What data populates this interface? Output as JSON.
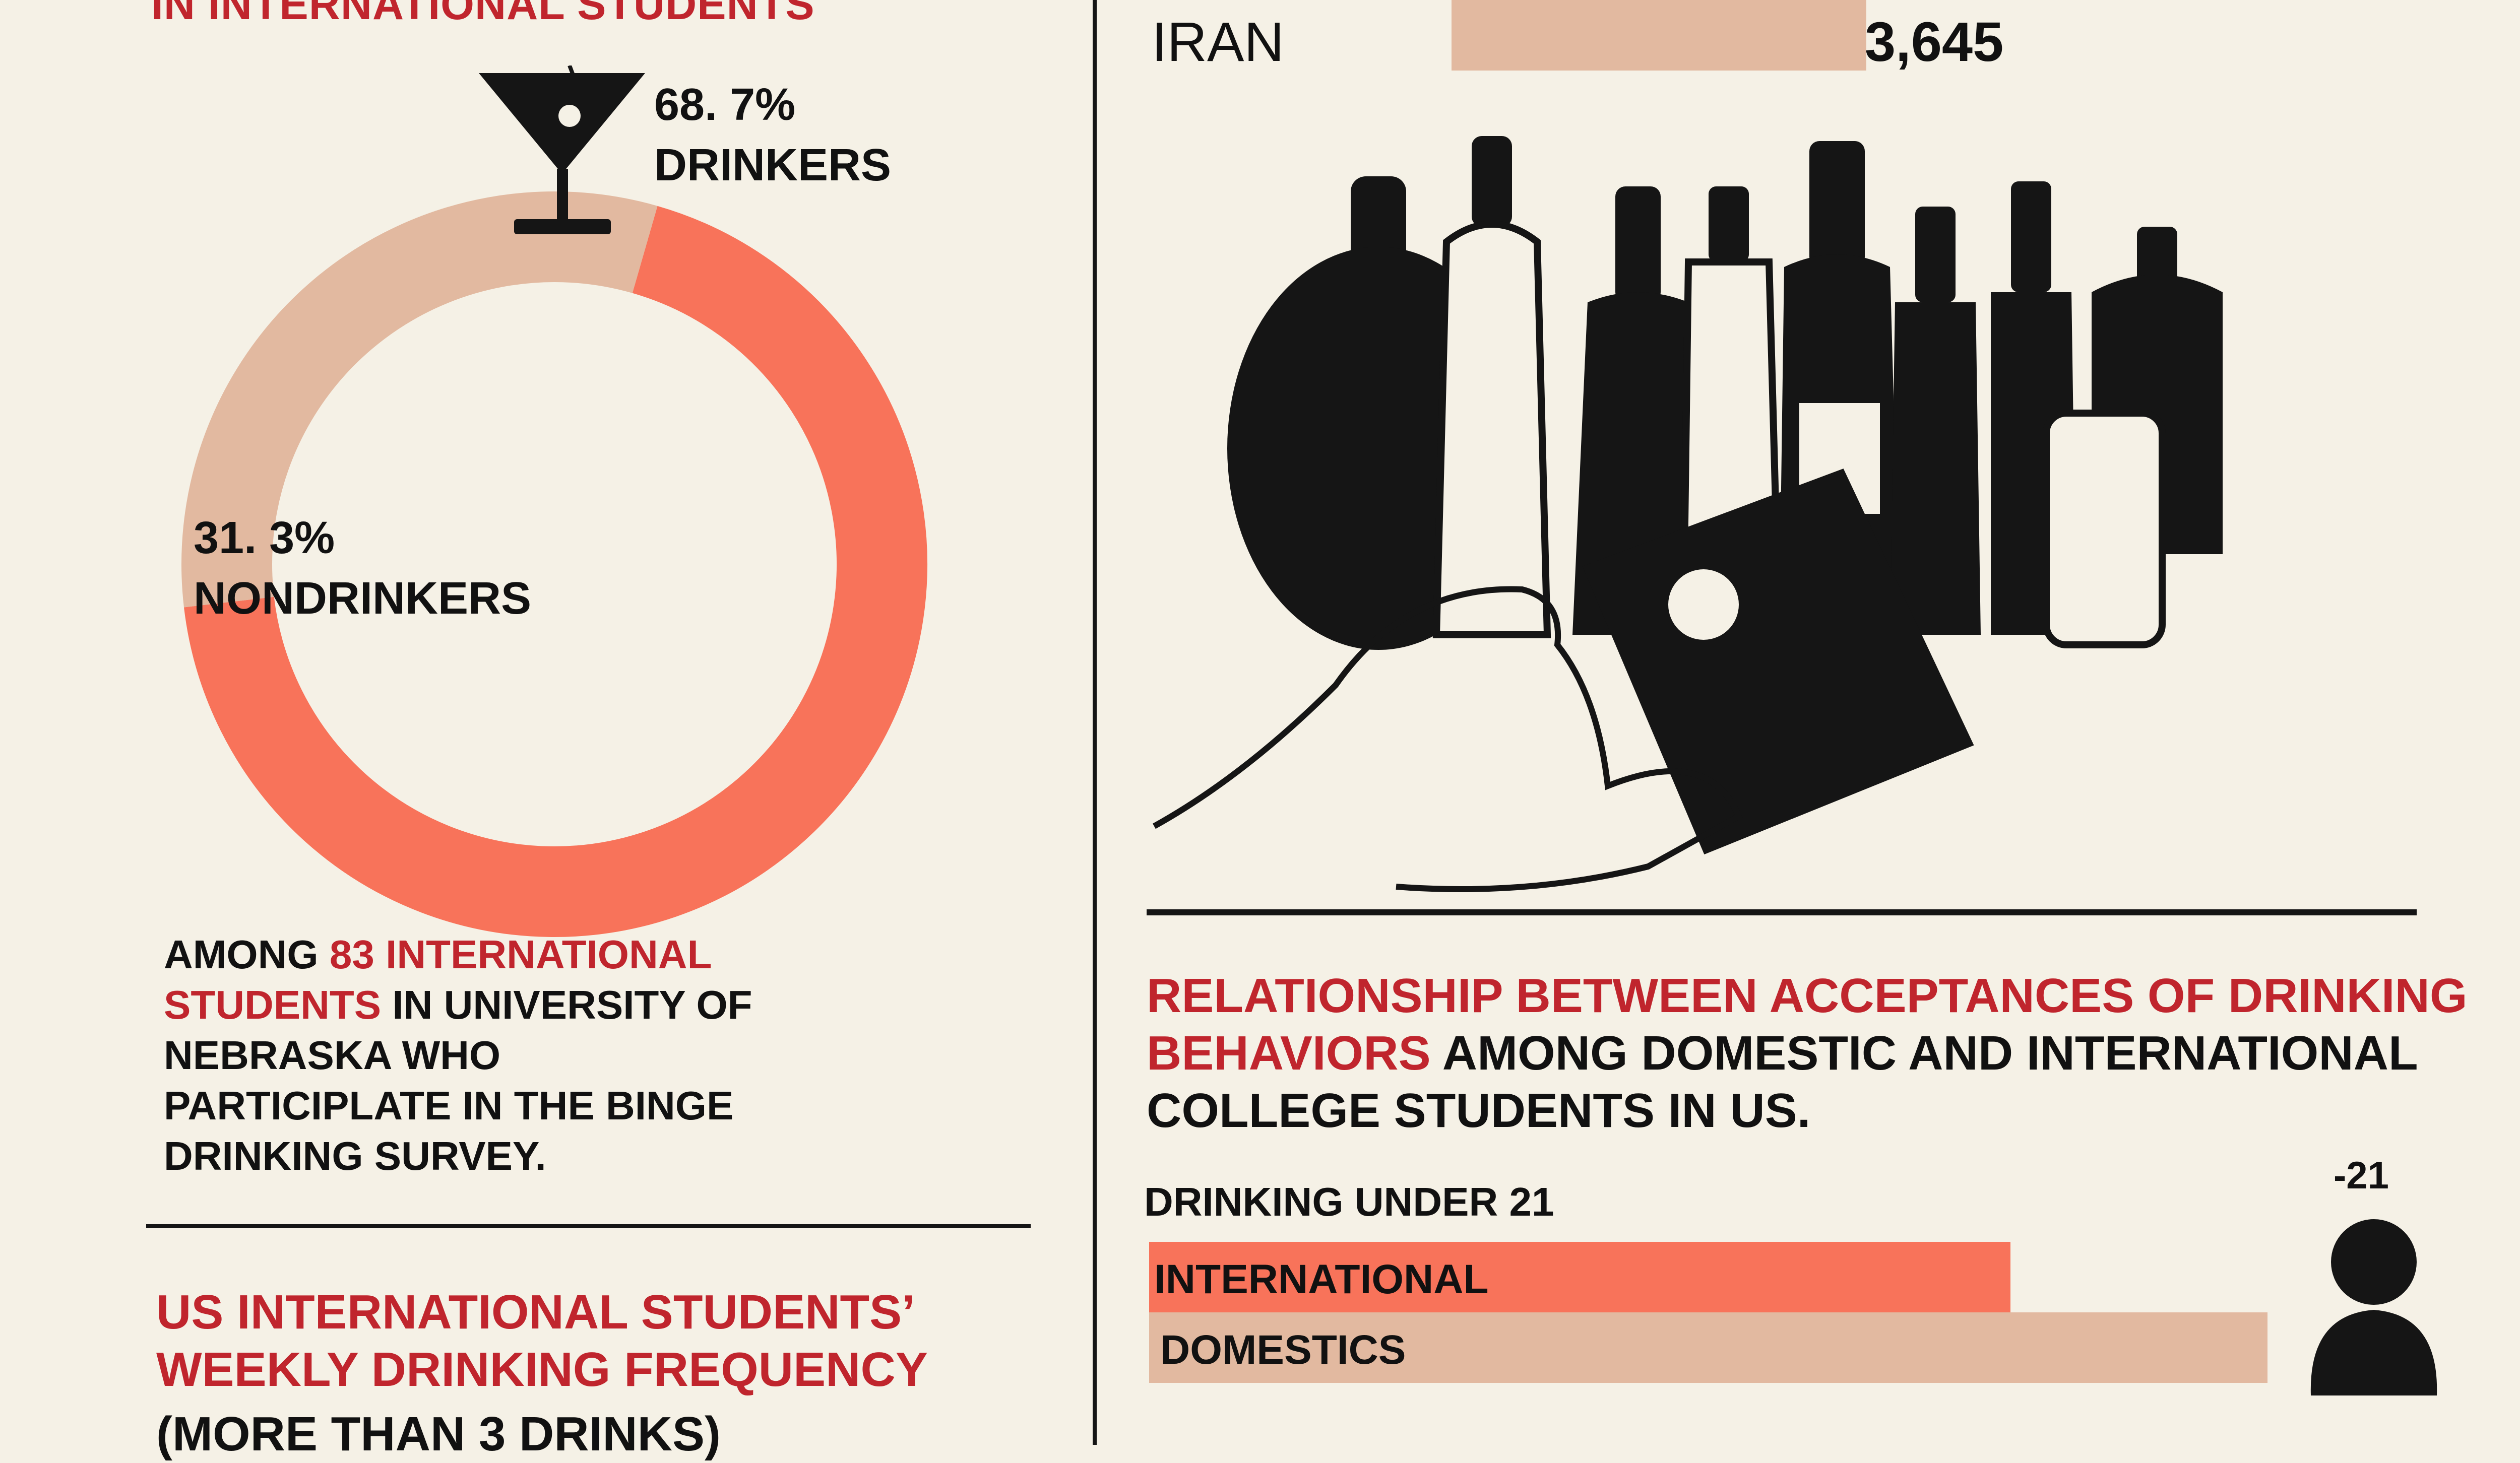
{
  "left_panel": {
    "title_partial": "IN INTERNATIONAL STUDENTS",
    "note": {
      "prefix": "AMONG ",
      "highlight": "83 INTERNATIONAL STUDENTS",
      "suffix": " IN UNIVERSITY OF NEBRASKA WHO PARTICIPLATE IN THE BINGE DRINKING SURVEY."
    },
    "section2_title_line1": "US INTERNATIONAL STUDENTS’",
    "section2_title_line2": "WEEKLY DRINKING FREQUENCY",
    "section2_subtitle_partial": "(MORE THAN 3 DRINKS)"
  },
  "donut_labels": {
    "drinkers_pct": "68. 7%",
    "drinkers_word": "DRINKERS",
    "nondrinkers_pct": "31. 3%",
    "nondrinkers_word": "NONDRINKERS"
  },
  "right_panel": {
    "iran_label": "IRAN",
    "iran_value": "3,645",
    "relationship_title_red_line1": "RELATIONSHIP BETWEEN ACCEPTANCES OF DRINKING",
    "relationship_title_red_line2": "BEHAVIORS",
    "relationship_title_black_line2": " AMONG DOMESTIC AND INTERNATIONAL",
    "relationship_title_black_line3": "COLLEGE STUDENTS IN US.",
    "category_label": "DRINKING UNDER 21",
    "age_label": "-21"
  },
  "colors": {
    "primary": "#f8735a",
    "secondary": "#e2b9a0",
    "accent_red": "#c0252d",
    "background": "#f5f1e6",
    "ink": "#151515"
  },
  "chart_data": [
    {
      "type": "pie",
      "variant": "donut",
      "slices": [
        {
          "label": "DRINKERS",
          "value": 68.7,
          "color": "#f8735a"
        },
        {
          "label": "NONDRINKERS",
          "value": 31.3,
          "color": "#e2b9a0"
        }
      ]
    },
    {
      "type": "bar",
      "orientation": "horizontal",
      "categories": [
        "INTERNATIONAL",
        "DOMESTICS"
      ],
      "values": [
        67,
        87
      ],
      "value_unit": "percent (estimated from bar length)",
      "colors": [
        "#f8735a",
        "#e2b9a0"
      ],
      "xlim": [
        0,
        100
      ]
    },
    {
      "type": "bar",
      "orientation": "horizontal",
      "categories": [
        "IRAN"
      ],
      "values": [
        3645
      ],
      "xlim": [
        0,
        28000
      ]
    }
  ]
}
